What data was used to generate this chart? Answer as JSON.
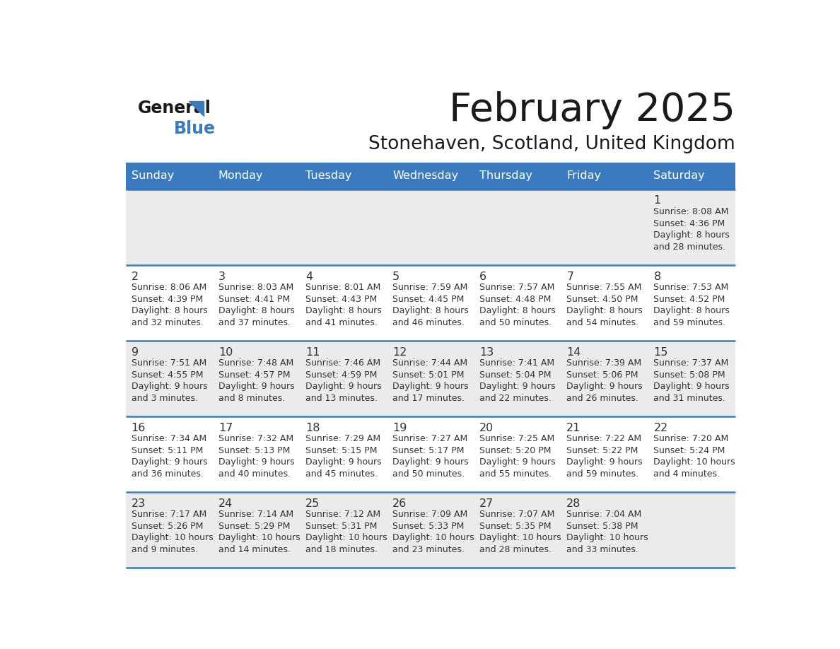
{
  "title": "February 2025",
  "subtitle": "Stonehaven, Scotland, United Kingdom",
  "header_color": "#3a7bbf",
  "header_text_color": "#ffffff",
  "cell_bg_even": "#ebebeb",
  "cell_bg_odd": "#ffffff",
  "border_color": "#3a7bbf",
  "text_color": "#333333",
  "day_headers": [
    "Sunday",
    "Monday",
    "Tuesday",
    "Wednesday",
    "Thursday",
    "Friday",
    "Saturday"
  ],
  "days": [
    {
      "day": 1,
      "col": 6,
      "row": 0,
      "sunrise": "8:08 AM",
      "sunset": "4:36 PM",
      "daylight_h": "8 hours",
      "daylight_m": "and 28 minutes."
    },
    {
      "day": 2,
      "col": 0,
      "row": 1,
      "sunrise": "8:06 AM",
      "sunset": "4:39 PM",
      "daylight_h": "8 hours",
      "daylight_m": "and 32 minutes."
    },
    {
      "day": 3,
      "col": 1,
      "row": 1,
      "sunrise": "8:03 AM",
      "sunset": "4:41 PM",
      "daylight_h": "8 hours",
      "daylight_m": "and 37 minutes."
    },
    {
      "day": 4,
      "col": 2,
      "row": 1,
      "sunrise": "8:01 AM",
      "sunset": "4:43 PM",
      "daylight_h": "8 hours",
      "daylight_m": "and 41 minutes."
    },
    {
      "day": 5,
      "col": 3,
      "row": 1,
      "sunrise": "7:59 AM",
      "sunset": "4:45 PM",
      "daylight_h": "8 hours",
      "daylight_m": "and 46 minutes."
    },
    {
      "day": 6,
      "col": 4,
      "row": 1,
      "sunrise": "7:57 AM",
      "sunset": "4:48 PM",
      "daylight_h": "8 hours",
      "daylight_m": "and 50 minutes."
    },
    {
      "day": 7,
      "col": 5,
      "row": 1,
      "sunrise": "7:55 AM",
      "sunset": "4:50 PM",
      "daylight_h": "8 hours",
      "daylight_m": "and 54 minutes."
    },
    {
      "day": 8,
      "col": 6,
      "row": 1,
      "sunrise": "7:53 AM",
      "sunset": "4:52 PM",
      "daylight_h": "8 hours",
      "daylight_m": "and 59 minutes."
    },
    {
      "day": 9,
      "col": 0,
      "row": 2,
      "sunrise": "7:51 AM",
      "sunset": "4:55 PM",
      "daylight_h": "9 hours",
      "daylight_m": "and 3 minutes."
    },
    {
      "day": 10,
      "col": 1,
      "row": 2,
      "sunrise": "7:48 AM",
      "sunset": "4:57 PM",
      "daylight_h": "9 hours",
      "daylight_m": "and 8 minutes."
    },
    {
      "day": 11,
      "col": 2,
      "row": 2,
      "sunrise": "7:46 AM",
      "sunset": "4:59 PM",
      "daylight_h": "9 hours",
      "daylight_m": "and 13 minutes."
    },
    {
      "day": 12,
      "col": 3,
      "row": 2,
      "sunrise": "7:44 AM",
      "sunset": "5:01 PM",
      "daylight_h": "9 hours",
      "daylight_m": "and 17 minutes."
    },
    {
      "day": 13,
      "col": 4,
      "row": 2,
      "sunrise": "7:41 AM",
      "sunset": "5:04 PM",
      "daylight_h": "9 hours",
      "daylight_m": "and 22 minutes."
    },
    {
      "day": 14,
      "col": 5,
      "row": 2,
      "sunrise": "7:39 AM",
      "sunset": "5:06 PM",
      "daylight_h": "9 hours",
      "daylight_m": "and 26 minutes."
    },
    {
      "day": 15,
      "col": 6,
      "row": 2,
      "sunrise": "7:37 AM",
      "sunset": "5:08 PM",
      "daylight_h": "9 hours",
      "daylight_m": "and 31 minutes."
    },
    {
      "day": 16,
      "col": 0,
      "row": 3,
      "sunrise": "7:34 AM",
      "sunset": "5:11 PM",
      "daylight_h": "9 hours",
      "daylight_m": "and 36 minutes."
    },
    {
      "day": 17,
      "col": 1,
      "row": 3,
      "sunrise": "7:32 AM",
      "sunset": "5:13 PM",
      "daylight_h": "9 hours",
      "daylight_m": "and 40 minutes."
    },
    {
      "day": 18,
      "col": 2,
      "row": 3,
      "sunrise": "7:29 AM",
      "sunset": "5:15 PM",
      "daylight_h": "9 hours",
      "daylight_m": "and 45 minutes."
    },
    {
      "day": 19,
      "col": 3,
      "row": 3,
      "sunrise": "7:27 AM",
      "sunset": "5:17 PM",
      "daylight_h": "9 hours",
      "daylight_m": "and 50 minutes."
    },
    {
      "day": 20,
      "col": 4,
      "row": 3,
      "sunrise": "7:25 AM",
      "sunset": "5:20 PM",
      "daylight_h": "9 hours",
      "daylight_m": "and 55 minutes."
    },
    {
      "day": 21,
      "col": 5,
      "row": 3,
      "sunrise": "7:22 AM",
      "sunset": "5:22 PM",
      "daylight_h": "9 hours",
      "daylight_m": "and 59 minutes."
    },
    {
      "day": 22,
      "col": 6,
      "row": 3,
      "sunrise": "7:20 AM",
      "sunset": "5:24 PM",
      "daylight_h": "10 hours",
      "daylight_m": "and 4 minutes."
    },
    {
      "day": 23,
      "col": 0,
      "row": 4,
      "sunrise": "7:17 AM",
      "sunset": "5:26 PM",
      "daylight_h": "10 hours",
      "daylight_m": "and 9 minutes."
    },
    {
      "day": 24,
      "col": 1,
      "row": 4,
      "sunrise": "7:14 AM",
      "sunset": "5:29 PM",
      "daylight_h": "10 hours",
      "daylight_m": "and 14 minutes."
    },
    {
      "day": 25,
      "col": 2,
      "row": 4,
      "sunrise": "7:12 AM",
      "sunset": "5:31 PM",
      "daylight_h": "10 hours",
      "daylight_m": "and 18 minutes."
    },
    {
      "day": 26,
      "col": 3,
      "row": 4,
      "sunrise": "7:09 AM",
      "sunset": "5:33 PM",
      "daylight_h": "10 hours",
      "daylight_m": "and 23 minutes."
    },
    {
      "day": 27,
      "col": 4,
      "row": 4,
      "sunrise": "7:07 AM",
      "sunset": "5:35 PM",
      "daylight_h": "10 hours",
      "daylight_m": "and 28 minutes."
    },
    {
      "day": 28,
      "col": 5,
      "row": 4,
      "sunrise": "7:04 AM",
      "sunset": "5:38 PM",
      "daylight_h": "10 hours",
      "daylight_m": "and 33 minutes."
    }
  ],
  "num_rows": 5,
  "num_cols": 7
}
